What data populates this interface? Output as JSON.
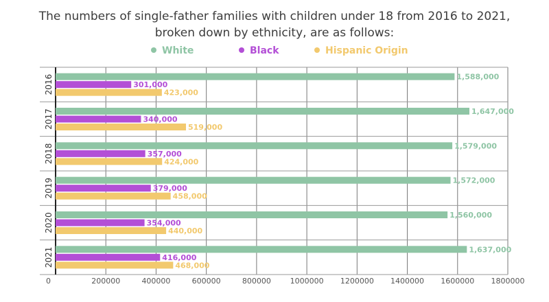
{
  "chart_data": {
    "type": "bar",
    "orientation": "horizontal",
    "title_lines": [
      "The numbers of single-father families with children under 18 from 2016 to 2021,",
      "broken down by ethnicity, are as follows:"
    ],
    "categories": [
      "2016",
      "2017",
      "2018",
      "2019",
      "2020",
      "2021"
    ],
    "series": [
      {
        "name": "White",
        "color": "#8fc5a5",
        "values": [
          1588000,
          1647000,
          1579000,
          1572000,
          1560000,
          1637000
        ],
        "labels": [
          "1,588,000",
          "1,647,000",
          "1,579,000",
          "1,572,000",
          "1,560,000",
          "1,637,000"
        ]
      },
      {
        "name": "Black",
        "color": "#b34fd6",
        "values": [
          301000,
          340000,
          357000,
          379000,
          354000,
          416000
        ],
        "labels": [
          "301,000",
          "340,000",
          "357,000",
          "379,000",
          "354,000",
          "416,000"
        ]
      },
      {
        "name": "Hispanic Origin",
        "color": "#f2c96e",
        "values": [
          423000,
          519000,
          424000,
          458000,
          440000,
          468000
        ],
        "labels": [
          "423,000",
          "519,000",
          "424,000",
          "458,000",
          "440,000",
          "468,000"
        ]
      }
    ],
    "x_ticks": [
      0,
      200000,
      400000,
      600000,
      800000,
      1000000,
      1200000,
      1400000,
      1600000,
      1800000
    ],
    "x_tick_labels": [
      "0",
      "200000",
      "400000",
      "600000",
      "800000",
      "1000000",
      "1200000",
      "1400000",
      "1600000",
      "1800000"
    ],
    "xlim": [
      0,
      1800000
    ],
    "grid": true,
    "legend_position": "top-center"
  }
}
